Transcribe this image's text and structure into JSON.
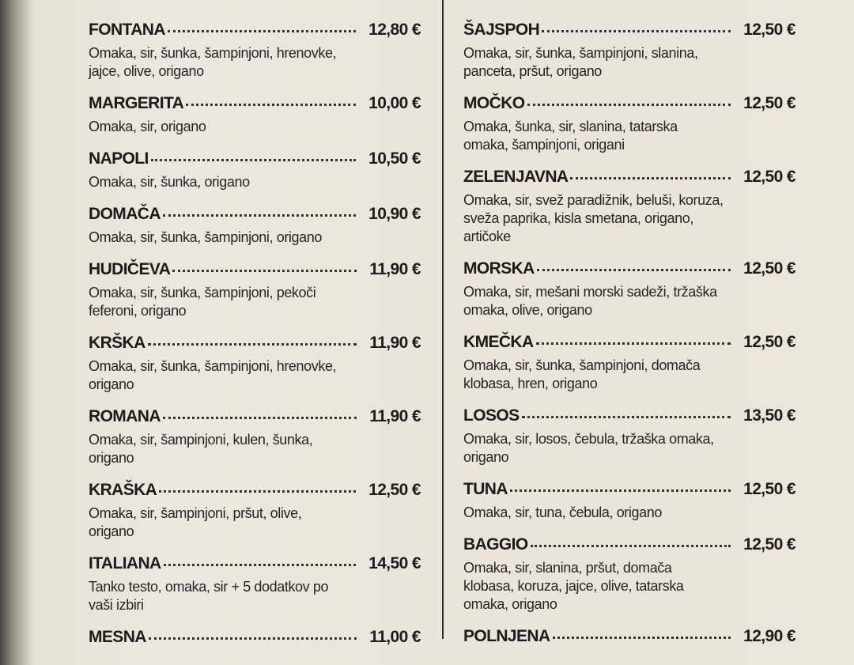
{
  "columns": [
    {
      "items": [
        {
          "name": "FONTANA",
          "price": "12,80 €",
          "description": [
            "Omaka, sir, šunka, šampinjoni, hrenovke,",
            "jajce, olive, origano"
          ]
        },
        {
          "name": "MARGERITA",
          "price": "10,00 €",
          "description": [
            "Omaka, sir, origano"
          ]
        },
        {
          "name": "NAPOLI",
          "price": "10,50 €",
          "description": [
            "Omaka, sir, šunka, origano"
          ]
        },
        {
          "name": "DOMAČA",
          "price": "10,90 €",
          "description": [
            "Omaka, sir, šunka, šampinjoni, origano"
          ]
        },
        {
          "name": "HUDIČEVA",
          "price": "11,90 €",
          "description": [
            "Omaka, sir, šunka, šampinjoni, pekoči",
            "feferoni, origano"
          ]
        },
        {
          "name": "KRŠKA",
          "price": "11,90 €",
          "description": [
            "Omaka, sir, šunka, šampinjoni, hrenovke,",
            "origano"
          ]
        },
        {
          "name": "ROMANA",
          "price": "11,90 €",
          "description": [
            "Omaka, sir, šampinjoni, kulen, šunka,",
            "origano"
          ]
        },
        {
          "name": "KRAŠKA",
          "price": "12,50 €",
          "description": [
            "Omaka, sir, šampinjoni, pršut, olive,",
            "origano"
          ]
        },
        {
          "name": "ITALIANA",
          "price": "14,50 €",
          "description": [
            "Tanko testo, omaka, sir + 5 dodatkov po",
            "vaši izbiri"
          ]
        },
        {
          "name": "MESNA",
          "price": "11,00 €",
          "description": []
        }
      ]
    },
    {
      "items": [
        {
          "name": "ŠAJSPOH",
          "price": "12,50 €",
          "description": [
            "Omaka, sir, šunka, šampinjoni, slanina,",
            "panceta, pršut, origano"
          ]
        },
        {
          "name": "MOČKO",
          "price": "12,50 €",
          "description": [
            "Omaka, šunka, sir, slanina, tatarska",
            "omaka, šampinjoni, origani"
          ]
        },
        {
          "name": "ZELENJAVNA",
          "price": "12,50 €",
          "description": [
            "Omaka, sir, svež paradižnik, beluši, koruza,",
            "sveža paprika, kisla smetana, origano,",
            "artičoke"
          ]
        },
        {
          "name": "MORSKA",
          "price": "12,50 €",
          "description": [
            "Omaka, sir, mešani morski sadeži, tržaška",
            "omaka, olive, origano"
          ]
        },
        {
          "name": "KMEČKA",
          "price": "12,50 €",
          "description": [
            "Omaka, sir, šunka, šampinjoni, domača",
            "klobasa, hren, origano"
          ]
        },
        {
          "name": "LOSOS",
          "price": "13,50 €",
          "description": [
            "Omaka, sir, losos, čebula, tržaška omaka,",
            "origano"
          ]
        },
        {
          "name": "TUNA",
          "price": "12,50 €",
          "description": [
            "Omaka, sir, tuna, čebula, origano"
          ]
        },
        {
          "name": "BAGGIO",
          "price": "12,50 €",
          "description": [
            "Omaka, sir, slanina, pršut, domača",
            "klobasa, koruza, jajce, olive, tatarska",
            "omaka, origano"
          ]
        },
        {
          "name": "POLNJENA",
          "price": "12,90 €",
          "description": []
        }
      ]
    }
  ]
}
